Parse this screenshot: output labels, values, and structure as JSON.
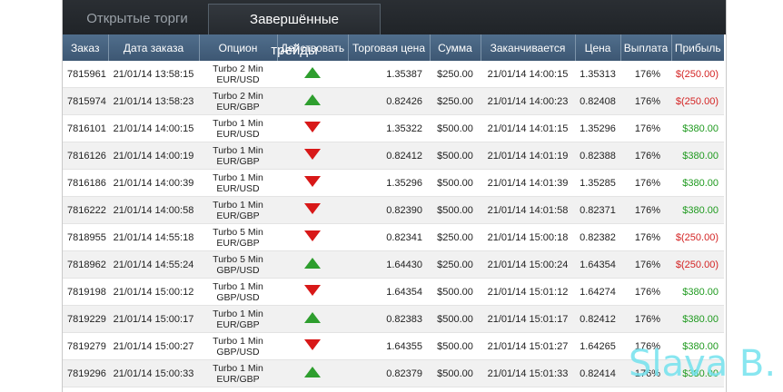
{
  "tabs": [
    {
      "label": "Открытые торги",
      "active": false
    },
    {
      "label": "Завершённые трейды",
      "active": true
    }
  ],
  "columns": [
    "Заказ",
    "Дата заказа",
    "Опцион",
    "Действовать",
    "Торговая цена",
    "Сумма",
    "Заканчивается",
    "Цена",
    "Выплата",
    "Прибыль"
  ],
  "rows": [
    {
      "order": "7815961",
      "date": "21/01/14 13:58:15",
      "option_line1": "Turbo 2 Min",
      "option_line2": "EUR/USD",
      "action": "up",
      "trade_price": "1.35387",
      "amount": "$250.00",
      "expires": "21/01/14 14:00:15",
      "price": "1.35313",
      "payout": "176%",
      "profit": "$(250.00)",
      "profit_sign": "neg"
    },
    {
      "order": "7815974",
      "date": "21/01/14 13:58:23",
      "option_line1": "Turbo 2 Min",
      "option_line2": "EUR/GBP",
      "action": "up",
      "trade_price": "0.82426",
      "amount": "$250.00",
      "expires": "21/01/14 14:00:23",
      "price": "0.82408",
      "payout": "176%",
      "profit": "$(250.00)",
      "profit_sign": "neg"
    },
    {
      "order": "7816101",
      "date": "21/01/14 14:00:15",
      "option_line1": "Turbo 1 Min",
      "option_line2": "EUR/USD",
      "action": "down",
      "trade_price": "1.35322",
      "amount": "$500.00",
      "expires": "21/01/14 14:01:15",
      "price": "1.35296",
      "payout": "176%",
      "profit": "$380.00",
      "profit_sign": "pos"
    },
    {
      "order": "7816126",
      "date": "21/01/14 14:00:19",
      "option_line1": "Turbo 1 Min",
      "option_line2": "EUR/GBP",
      "action": "down",
      "trade_price": "0.82412",
      "amount": "$500.00",
      "expires": "21/01/14 14:01:19",
      "price": "0.82388",
      "payout": "176%",
      "profit": "$380.00",
      "profit_sign": "pos"
    },
    {
      "order": "7816186",
      "date": "21/01/14 14:00:39",
      "option_line1": "Turbo 1 Min",
      "option_line2": "EUR/USD",
      "action": "down",
      "trade_price": "1.35296",
      "amount": "$500.00",
      "expires": "21/01/14 14:01:39",
      "price": "1.35285",
      "payout": "176%",
      "profit": "$380.00",
      "profit_sign": "pos"
    },
    {
      "order": "7816222",
      "date": "21/01/14 14:00:58",
      "option_line1": "Turbo 1 Min",
      "option_line2": "EUR/GBP",
      "action": "down",
      "trade_price": "0.82390",
      "amount": "$500.00",
      "expires": "21/01/14 14:01:58",
      "price": "0.82371",
      "payout": "176%",
      "profit": "$380.00",
      "profit_sign": "pos"
    },
    {
      "order": "7818955",
      "date": "21/01/14 14:55:18",
      "option_line1": "Turbo 5 Min",
      "option_line2": "EUR/GBP",
      "action": "down",
      "trade_price": "0.82341",
      "amount": "$250.00",
      "expires": "21/01/14 15:00:18",
      "price": "0.82382",
      "payout": "176%",
      "profit": "$(250.00)",
      "profit_sign": "neg"
    },
    {
      "order": "7818962",
      "date": "21/01/14 14:55:24",
      "option_line1": "Turbo 5 Min",
      "option_line2": "GBP/USD",
      "action": "up",
      "trade_price": "1.64430",
      "amount": "$250.00",
      "expires": "21/01/14 15:00:24",
      "price": "1.64354",
      "payout": "176%",
      "profit": "$(250.00)",
      "profit_sign": "neg"
    },
    {
      "order": "7819198",
      "date": "21/01/14 15:00:12",
      "option_line1": "Turbo 1 Min",
      "option_line2": "GBP/USD",
      "action": "down",
      "trade_price": "1.64354",
      "amount": "$500.00",
      "expires": "21/01/14 15:01:12",
      "price": "1.64274",
      "payout": "176%",
      "profit": "$380.00",
      "profit_sign": "pos"
    },
    {
      "order": "7819229",
      "date": "21/01/14 15:00:17",
      "option_line1": "Turbo 1 Min",
      "option_line2": "EUR/GBP",
      "action": "up",
      "trade_price": "0.82383",
      "amount": "$500.00",
      "expires": "21/01/14 15:01:17",
      "price": "0.82412",
      "payout": "176%",
      "profit": "$380.00",
      "profit_sign": "pos"
    },
    {
      "order": "7819279",
      "date": "21/01/14 15:00:27",
      "option_line1": "Turbo 1 Min",
      "option_line2": "GBP/USD",
      "action": "down",
      "trade_price": "1.64355",
      "amount": "$500.00",
      "expires": "21/01/14 15:01:27",
      "price": "1.64265",
      "payout": "176%",
      "profit": "$380.00",
      "profit_sign": "pos"
    },
    {
      "order": "7819296",
      "date": "21/01/14 15:00:33",
      "option_line1": "Turbo 1 Min",
      "option_line2": "EUR/GBP",
      "action": "up",
      "trade_price": "0.82379",
      "amount": "$500.00",
      "expires": "21/01/14 15:01:33",
      "price": "0.82414",
      "payout": "176%",
      "profit": "$380.00",
      "profit_sign": "pos"
    }
  ],
  "colors": {
    "up": "#2e9e2e",
    "down": "#d81818",
    "profit_positive": "#1f9a1f",
    "profit_negative": "#d42424",
    "header": "#46607d"
  },
  "watermark": "Slava B."
}
